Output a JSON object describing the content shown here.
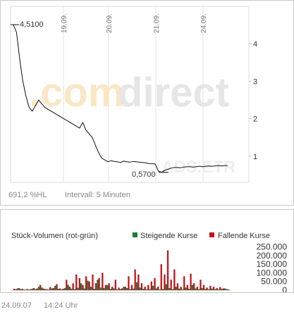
{
  "brand": {
    "watermark_left": ".com",
    "watermark_right": "direct",
    "watermark_right_color": "#e6e6e6",
    "watermark_left_color": "#fbe7c6",
    "ticker_watermark": "ADS.ETR"
  },
  "price_chart": {
    "high_label": "4,5100",
    "low_label": "0,5700",
    "range_text": "691,2 %HL",
    "interval_text": "Intervall: 5 Minuten",
    "date_labels": [
      "19.09.",
      "20.09.",
      "21.09.",
      "24.09."
    ],
    "y_ticks": [
      "1",
      "2",
      "3",
      "4"
    ]
  },
  "volume_chart": {
    "title": "Stück-Volumen (rot-grün)",
    "legend_rising": "Steigende Kurse",
    "legend_falling": "Fallende Kurse",
    "rising_color": "#1b7a3a",
    "falling_color": "#c0151b",
    "y_ticks": [
      "0",
      "50.000",
      "100.000",
      "150.000",
      "200.000",
      "250.000"
    ]
  },
  "footer": {
    "date": "24.09.07",
    "time": "14:24 Uhr"
  },
  "chart_data": [
    {
      "type": "line",
      "title": "",
      "xlabel": "",
      "ylabel": "",
      "x_ticks": [
        "19.09.",
        "20.09.",
        "21.09.",
        "24.09."
      ],
      "ylim": [
        0.3,
        5.0
      ],
      "y_ticks": [
        1,
        2,
        3,
        4
      ],
      "high": 4.51,
      "low": 0.57,
      "series": [
        {
          "values": [
            4.51,
            4.3,
            3.6,
            3.0,
            2.6,
            2.3,
            2.2,
            2.35,
            2.5,
            2.4,
            2.3,
            2.25,
            2.2,
            2.15,
            2.1,
            2.05,
            2.0,
            1.95,
            1.9,
            1.85,
            1.8,
            1.75,
            1.9,
            1.7,
            1.6,
            1.5,
            1.3,
            1.1,
            0.95,
            0.9,
            0.85,
            0.88,
            0.86,
            0.85,
            0.83,
            0.87,
            0.85,
            0.84,
            0.86,
            0.85,
            0.84,
            0.83,
            0.82,
            0.8,
            0.8,
            0.79,
            0.6,
            0.57,
            0.62,
            0.65,
            0.68,
            0.7,
            0.7,
            0.69,
            0.71,
            0.72,
            0.72,
            0.71,
            0.72,
            0.73,
            0.72,
            0.73,
            0.74,
            0.73,
            0.74,
            0.75,
            0.74,
            0.75,
            0.75
          ]
        }
      ]
    },
    {
      "type": "bar",
      "title": "Stück-Volumen (rot-grün)",
      "ylim": [
        0,
        260000
      ],
      "y_ticks": [
        0,
        50000,
        100000,
        150000,
        200000,
        250000
      ],
      "series": [
        {
          "name": "Steigende Kurse",
          "values": [
            5000,
            12000,
            8000,
            3000,
            4000,
            9000,
            6000,
            20000,
            15000,
            7000,
            4000,
            10000,
            25000,
            8000,
            5000,
            12000,
            30000,
            9000,
            6000,
            14000,
            40000,
            10000,
            55000,
            20000,
            8000,
            60000,
            15000,
            12000,
            30000,
            8000,
            10000,
            5000,
            7000,
            20000,
            12000,
            6000,
            9000,
            45000,
            15000,
            8000,
            5000,
            6000,
            25000,
            10000,
            4000,
            7000,
            35000,
            12000,
            6000,
            20000,
            9000,
            5000,
            15000,
            8000,
            30000,
            10000,
            6000,
            12000,
            7000,
            5000,
            9000,
            6000,
            4000,
            8000,
            10000,
            5000
          ]
        },
        {
          "name": "Fallende Kurse",
          "values": [
            8000,
            10000,
            6000,
            4000,
            7000,
            5000,
            12000,
            10000,
            30000,
            9000,
            6000,
            18000,
            12000,
            35000,
            10000,
            8000,
            60000,
            20000,
            40000,
            90000,
            70000,
            30000,
            80000,
            50000,
            90000,
            40000,
            70000,
            100000,
            30000,
            40000,
            20000,
            60000,
            15000,
            10000,
            20000,
            80000,
            30000,
            120000,
            90000,
            40000,
            20000,
            30000,
            50000,
            70000,
            20000,
            150000,
            90000,
            230000,
            60000,
            120000,
            40000,
            20000,
            80000,
            30000,
            95000,
            40000,
            20000,
            60000,
            30000,
            15000,
            25000,
            20000,
            12000,
            18000,
            10000,
            6000
          ]
        }
      ]
    }
  ]
}
